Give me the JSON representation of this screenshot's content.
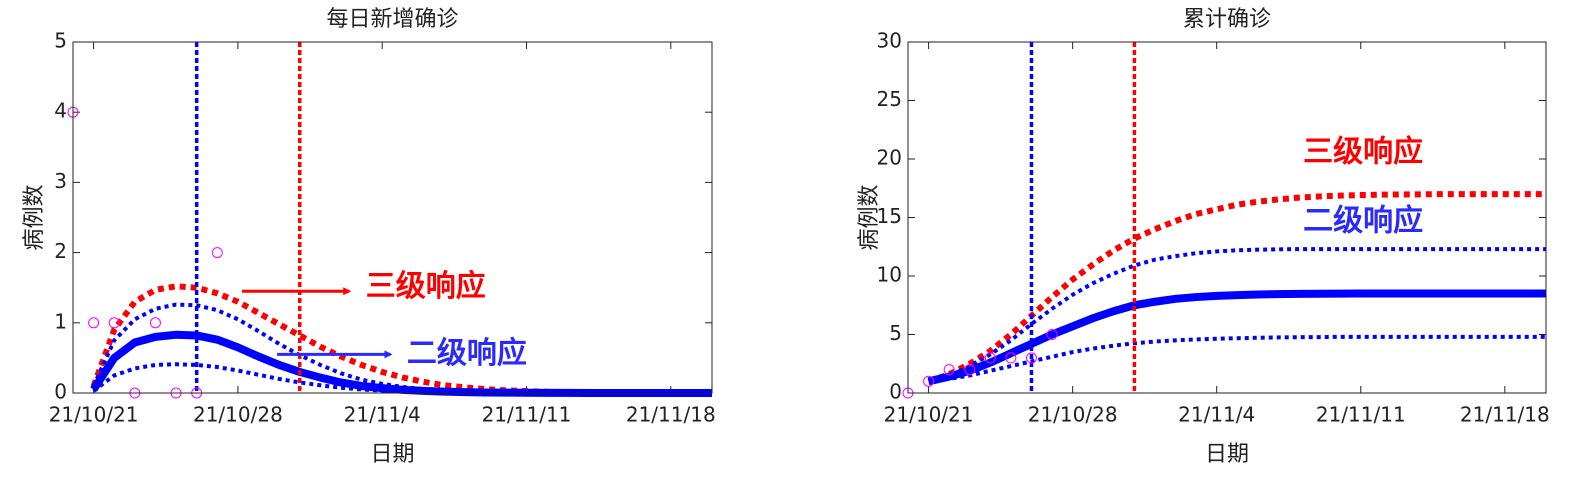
{
  "chart_data": [
    {
      "type": "line",
      "title": "每日新增确诊",
      "xlabel": "日期",
      "ylabel": "病例数",
      "xlim": [
        "21/10/20",
        "21/11/20"
      ],
      "xticks": [
        "21/10/21",
        "21/10/28",
        "21/11/4",
        "21/11/11",
        "21/11/18"
      ],
      "ylim": [
        0,
        5
      ],
      "yticks": [
        0,
        1,
        2,
        3,
        4,
        5
      ],
      "x": [
        "21/10/21",
        "21/10/22",
        "21/10/23",
        "21/10/24",
        "21/10/25",
        "21/10/26",
        "21/10/27",
        "21/10/28",
        "21/10/29",
        "21/10/30",
        "21/10/31",
        "21/11/1",
        "21/11/2",
        "21/11/3",
        "21/11/4",
        "21/11/5",
        "21/11/6",
        "21/11/7",
        "21/11/8",
        "21/11/9",
        "21/11/10",
        "21/11/11",
        "21/11/12",
        "21/11/13",
        "21/11/14",
        "21/11/15",
        "21/11/16",
        "21/11/17",
        "21/11/18",
        "21/11/19",
        "21/11/20"
      ],
      "series": [
        {
          "color": "#ff0000",
          "style": "dotted-bold",
          "values": [
            0.1,
            0.9,
            1.3,
            1.47,
            1.52,
            1.5,
            1.42,
            1.3,
            1.14,
            0.98,
            0.82,
            0.66,
            0.52,
            0.4,
            0.3,
            0.22,
            0.16,
            0.11,
            0.08,
            0.055,
            0.038,
            0.026,
            0.018,
            0.012,
            0.008,
            0.005,
            0.003,
            0.002,
            0.001,
            0,
            0
          ]
        },
        {
          "color": "#0000ff",
          "style": "dotted",
          "values": [
            0.1,
            0.75,
            1.05,
            1.2,
            1.26,
            1.25,
            1.18,
            1.05,
            0.88,
            0.7,
            0.54,
            0.4,
            0.28,
            0.19,
            0.13,
            0.085,
            0.055,
            0.035,
            0.022,
            0.014,
            0.009,
            0.005,
            0.003,
            0.002,
            0.001,
            0,
            0,
            0,
            0,
            0,
            0
          ]
        },
        {
          "color": "#0000ff",
          "style": "dotted",
          "values": [
            0.03,
            0.25,
            0.35,
            0.4,
            0.41,
            0.4,
            0.37,
            0.32,
            0.26,
            0.2,
            0.15,
            0.11,
            0.075,
            0.05,
            0.035,
            0.022,
            0.014,
            0.009,
            0.006,
            0.004,
            0.002,
            0,
            0,
            0,
            0,
            0,
            0,
            0,
            0,
            0,
            0
          ]
        },
        {
          "color": "#0000ff",
          "style": "solid-bold",
          "values": [
            0.05,
            0.5,
            0.72,
            0.8,
            0.83,
            0.82,
            0.76,
            0.65,
            0.52,
            0.4,
            0.3,
            0.22,
            0.15,
            0.1,
            0.07,
            0.045,
            0.03,
            0.02,
            0.013,
            0.008,
            0.005,
            0.003,
            0.002,
            0.001,
            0,
            0,
            0,
            0,
            0,
            0,
            0
          ]
        },
        {
          "color": "#ff00ff",
          "style": "markers",
          "x": [
            "21/10/20",
            "21/10/21",
            "21/10/22",
            "21/10/23",
            "21/10/24",
            "21/10/25",
            "21/10/26",
            "21/10/27"
          ],
          "values": [
            4,
            1,
            1,
            0,
            1,
            0,
            0,
            2
          ]
        }
      ],
      "vlines": [
        {
          "x": "21/10/26",
          "color": "#0000ff"
        },
        {
          "x": "21/10/31",
          "color": "#ff0000"
        }
      ],
      "annotations": [
        {
          "text": "三级响应",
          "color": "#ff0000"
        },
        {
          "text": "二级响应",
          "color": "#2a2aff"
        }
      ]
    },
    {
      "type": "line",
      "title": "累计确诊",
      "xlabel": "日期",
      "ylabel": "病例数",
      "xlim": [
        "21/10/20",
        "21/11/20"
      ],
      "xticks": [
        "21/10/21",
        "21/10/28",
        "21/11/4",
        "21/11/11",
        "21/11/18"
      ],
      "ylim": [
        0,
        30
      ],
      "yticks": [
        0,
        5,
        10,
        15,
        20,
        25,
        30
      ],
      "x": [
        "21/10/21",
        "21/10/22",
        "21/10/23",
        "21/10/24",
        "21/10/25",
        "21/10/26",
        "21/10/27",
        "21/10/28",
        "21/10/29",
        "21/10/30",
        "21/10/31",
        "21/11/1",
        "21/11/2",
        "21/11/3",
        "21/11/4",
        "21/11/5",
        "21/11/6",
        "21/11/7",
        "21/11/8",
        "21/11/9",
        "21/11/10",
        "21/11/11",
        "21/11/12",
        "21/11/13",
        "21/11/14",
        "21/11/15",
        "21/11/16",
        "21/11/17",
        "21/11/18",
        "21/11/19",
        "21/11/20"
      ],
      "series": [
        {
          "color": "#ff0000",
          "style": "dotted-bold",
          "values": [
            1,
            1.6,
            2.5,
            3.6,
            5,
            6.6,
            8.2,
            9.7,
            11,
            12.2,
            13.2,
            14,
            14.7,
            15.3,
            15.7,
            16.1,
            16.35,
            16.55,
            16.7,
            16.8,
            16.87,
            16.92,
            16.95,
            16.97,
            16.98,
            17,
            17,
            17,
            17,
            17,
            17
          ]
        },
        {
          "color": "#0000ff",
          "style": "dotted",
          "values": [
            1,
            1.5,
            2.3,
            3.3,
            4.5,
            5.9,
            7.2,
            8.4,
            9.4,
            10.2,
            10.9,
            11.4,
            11.7,
            11.95,
            12.1,
            12.2,
            12.25,
            12.28,
            12.3,
            12.3,
            12.3,
            12.3,
            12.3,
            12.3,
            12.3,
            12.3,
            12.3,
            12.3,
            12.3,
            12.3,
            12.3
          ]
        },
        {
          "color": "#0000ff",
          "style": "dotted",
          "values": [
            1,
            1.2,
            1.5,
            1.9,
            2.3,
            2.7,
            3.1,
            3.5,
            3.8,
            4.05,
            4.25,
            4.4,
            4.5,
            4.58,
            4.64,
            4.68,
            4.72,
            4.75,
            4.77,
            4.78,
            4.8,
            4.8,
            4.8,
            4.8,
            4.8,
            4.8,
            4.8,
            4.8,
            4.8,
            4.8,
            4.8
          ]
        },
        {
          "color": "#0000ff",
          "style": "solid-bold",
          "values": [
            1,
            1.4,
            1.9,
            2.6,
            3.4,
            4.2,
            5,
            5.7,
            6.4,
            7,
            7.5,
            7.8,
            8.05,
            8.2,
            8.3,
            8.37,
            8.42,
            8.45,
            8.47,
            8.48,
            8.49,
            8.5,
            8.5,
            8.5,
            8.5,
            8.5,
            8.5,
            8.5,
            8.5,
            8.5,
            8.5
          ]
        },
        {
          "color": "#ff00ff",
          "style": "markers",
          "x": [
            "21/10/20",
            "21/10/21",
            "21/10/22",
            "21/10/23",
            "21/10/24",
            "21/10/25",
            "21/10/26",
            "21/10/27"
          ],
          "values": [
            0,
            1,
            2,
            2,
            3,
            3,
            3,
            5
          ]
        }
      ],
      "vlines": [
        {
          "x": "21/10/26",
          "color": "#0000ff"
        },
        {
          "x": "21/10/31",
          "color": "#ff0000"
        }
      ],
      "annotations": [
        {
          "text": "三级响应",
          "color": "#ff0000"
        },
        {
          "text": "二级响应",
          "color": "#2a2aff"
        }
      ]
    }
  ]
}
